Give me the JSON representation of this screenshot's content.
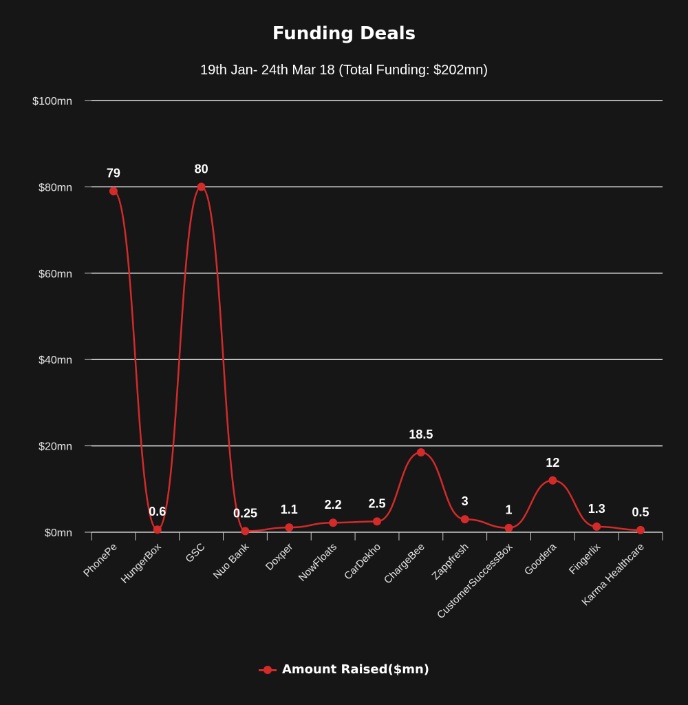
{
  "chart_data": {
    "type": "line",
    "title": "Funding Deals",
    "subtitle": "19th Jan- 24th Mar 18 (Total Funding: $202mn)",
    "categories": [
      "PhonePe",
      "HungerBox",
      "GSC",
      "Nuo Bank",
      "Doxper",
      "NowFloats",
      "CarDekho",
      "ChargeBee",
      "Zappfresh",
      "CustomerSuccessBox",
      "Goodera",
      "Fingerlix",
      "Karma Healthcare"
    ],
    "series": [
      {
        "name": "Amount Raised($mn)",
        "values": [
          79,
          0.6,
          80,
          0.25,
          1.1,
          2.2,
          2.5,
          18.5,
          3,
          1,
          12,
          1.3,
          0.5
        ],
        "labels": [
          "79",
          "0.6",
          "80",
          "0.25",
          "1.1",
          "2.2",
          "2.5",
          "18.5",
          "3",
          "1",
          "12",
          "1.3",
          "0.5"
        ],
        "color": "#d42a2a"
      }
    ],
    "yticks": [
      {
        "value": 0,
        "label": "$0mn"
      },
      {
        "value": 20,
        "label": "$20mn"
      },
      {
        "value": 40,
        "label": "$40mn"
      },
      {
        "value": 60,
        "label": "$60mn"
      },
      {
        "value": 80,
        "label": "$80mn"
      },
      {
        "value": 100,
        "label": "$100mn"
      }
    ],
    "ylim": [
      0,
      100
    ],
    "grid": true,
    "smooth": true,
    "legend_position": "bottom",
    "background": "#161616",
    "gridline_color": "#e0e0e0"
  }
}
